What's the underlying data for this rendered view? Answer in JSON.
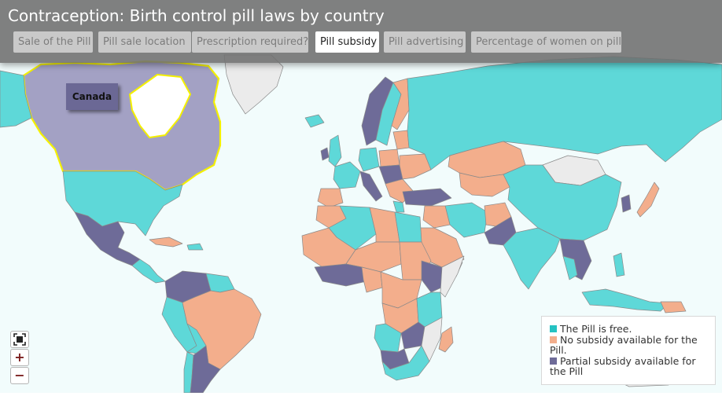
{
  "title": "Contraception: Birth control pill laws by country",
  "tabs": [
    {
      "label": "Sale of the Pill",
      "active": false
    },
    {
      "label": "Pill sale location",
      "active": false
    },
    {
      "label": "Prescription required?",
      "active": false
    },
    {
      "label": "Pill subsidy",
      "active": true
    },
    {
      "label": "Pill advertising",
      "active": false
    },
    {
      "label": "Percentage of women on pill",
      "active": false
    }
  ],
  "selected_country": {
    "name": "Canada",
    "category": "partial",
    "highlight_color": "#ffff00"
  },
  "legend": {
    "items": [
      {
        "key": "free",
        "label": "The Pill is free.",
        "color": "#5ed8d8"
      },
      {
        "key": "none",
        "label": "No subsidy available for the Pill.",
        "color": "#f3ae8c"
      },
      {
        "key": "partial",
        "label": "Partial subsidy available for the Pill",
        "color": "#6e6b98"
      }
    ]
  },
  "colors": {
    "ocean": "#f2fcfc",
    "no_data": "#ebebeb",
    "border": "#888888",
    "header_bg": "#6e6e6e"
  },
  "zoom_controls": {
    "fit_icon": "fit-to-screen-icon",
    "zoom_in": "+",
    "zoom_out": "−"
  }
}
